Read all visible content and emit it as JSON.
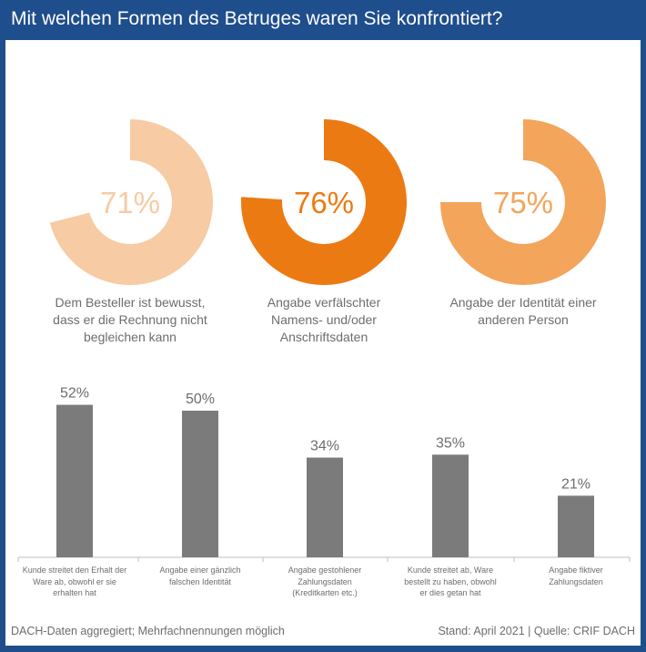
{
  "title": "Mit welchen Formen des Betruges waren Sie konfrontiert?",
  "colors": {
    "frame": "#1f4e8c",
    "donut1": "#f7cba3",
    "donut2": "#ec7a13",
    "donut3": "#f2a55b",
    "bar": "#7b7b7c",
    "text": "#6d6d6d"
  },
  "chart_data": [
    {
      "type": "pie",
      "variant": "donut",
      "items": [
        {
          "label": "Dem Besteller ist bewusst, dass er die Rechnung nicht begleichen kann",
          "value": 71,
          "value_text": "71%"
        },
        {
          "label": "Angabe verfälschter Namens- und/oder Anschriftsdaten",
          "value": 76,
          "value_text": "76%"
        },
        {
          "label": "Angabe der Identität einer anderen Person",
          "value": 75,
          "value_text": "75%"
        }
      ]
    },
    {
      "type": "bar",
      "categories": [
        "Kunde streitet den Erhalt der Ware ab, obwohl er sie erhalten hat",
        "Angabe einer gänzlich falschen Identität",
        "Angabe gestohlener Zahlungsdaten (Kreditkarten etc.)",
        "Kunde streitet ab, Ware bestellt zu haben, obwohl er dies getan hat",
        "Angabe fiktiver Zahlungsdaten"
      ],
      "values": [
        52,
        50,
        34,
        35,
        21
      ],
      "value_labels": [
        "52%",
        "50%",
        "34%",
        "35%",
        "21%"
      ]
    }
  ],
  "labels": {
    "donut": [
      [
        "Dem Besteller ist bewusst,",
        "dass er die Rechnung nicht",
        "begleichen kann"
      ],
      [
        "Angabe verfälschter",
        "Namens- und/oder",
        "Anschriftsdaten"
      ],
      [
        "Angabe der Identität einer",
        "anderen Person"
      ]
    ],
    "bars": [
      [
        "Kunde streitet den Erhalt der",
        "Ware ab, obwohl er sie",
        "erhalten hat"
      ],
      [
        "Angabe einer gänzlich",
        "falschen Identität"
      ],
      [
        "Angabe gestohlener",
        "Zahlungsdaten",
        "(Kreditkarten etc.)"
      ],
      [
        "Kunde streitet ab, Ware",
        "bestellt zu haben, obwohl",
        "er dies getan hat"
      ],
      [
        "Angabe fiktiver",
        "Zahlungsdaten"
      ]
    ]
  },
  "footer": {
    "note": "DACH-Daten aggregiert; Mehrfachnennungen möglich",
    "source": "Stand: April 2021 | Quelle: CRIF DACH"
  }
}
